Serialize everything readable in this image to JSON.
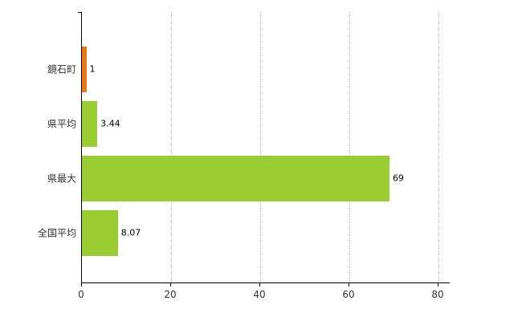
{
  "chart_data": {
    "type": "bar",
    "orientation": "horizontal",
    "title": "",
    "categories": [
      "鏡石町",
      "県平均",
      "県最大",
      "全国平均"
    ],
    "values": [
      1,
      3.44,
      69,
      8.07
    ],
    "value_labels": [
      "1",
      "3.44",
      "69",
      "8.07"
    ],
    "bar_colors": [
      "#e8791a",
      "#9acd32",
      "#9acd32",
      "#9acd32"
    ],
    "xlim": [
      0,
      80
    ],
    "x_ticks": [
      0,
      20,
      40,
      60,
      80
    ],
    "x_tick_labels": [
      "0",
      "20",
      "40",
      "60",
      "80"
    ],
    "grid": "vertical-dotted",
    "legend": "none",
    "colors": {
      "axis": "#000000",
      "gridline": "#c6c6c6",
      "tick_text": "#333333",
      "value_text": "#000000",
      "background": "#ffffff"
    }
  }
}
